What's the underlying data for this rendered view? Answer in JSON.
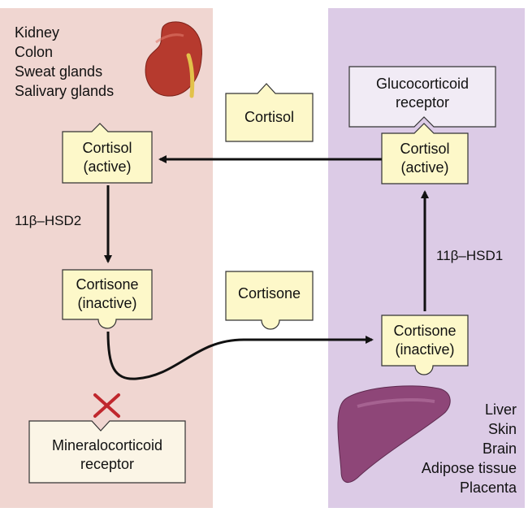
{
  "tissues_left": [
    "Kidney",
    "Colon",
    "Sweat glands",
    "Salivary glands"
  ],
  "tissues_right": [
    "Liver",
    "Skin",
    "Brain",
    "Adipose tissue",
    "Placenta"
  ],
  "nodes": {
    "cortisol_active_left": [
      "Cortisol",
      "(active)"
    ],
    "cortisone_inactive_left": [
      "Cortisone",
      "(inactive)"
    ],
    "mineralocorticoid_receptor": [
      "Mineralocorticoid",
      "receptor"
    ],
    "cortisol_middle": [
      "Cortisol"
    ],
    "cortisone_middle": [
      "Cortisone"
    ],
    "glucocorticoid_receptor": [
      "Glucocorticoid",
      "receptor"
    ],
    "cortisol_active_right": [
      "Cortisol",
      "(active)"
    ],
    "cortisone_inactive_right": [
      "Cortisone",
      "(inactive)"
    ]
  },
  "enzymes": {
    "left": "11β–HSD2",
    "right": "11β–HSD1"
  },
  "colors": {
    "left_panel": "#f0d6d1",
    "right_panel": "#dccbe6",
    "node_fill": "#fdf8c9",
    "receptor_fill": "#fbf5e6",
    "glucocorticoid_fill": "#f1ebf5",
    "block_mark": "#c0272d",
    "kidney": "#b63a2e",
    "liver": "#8e4678"
  }
}
